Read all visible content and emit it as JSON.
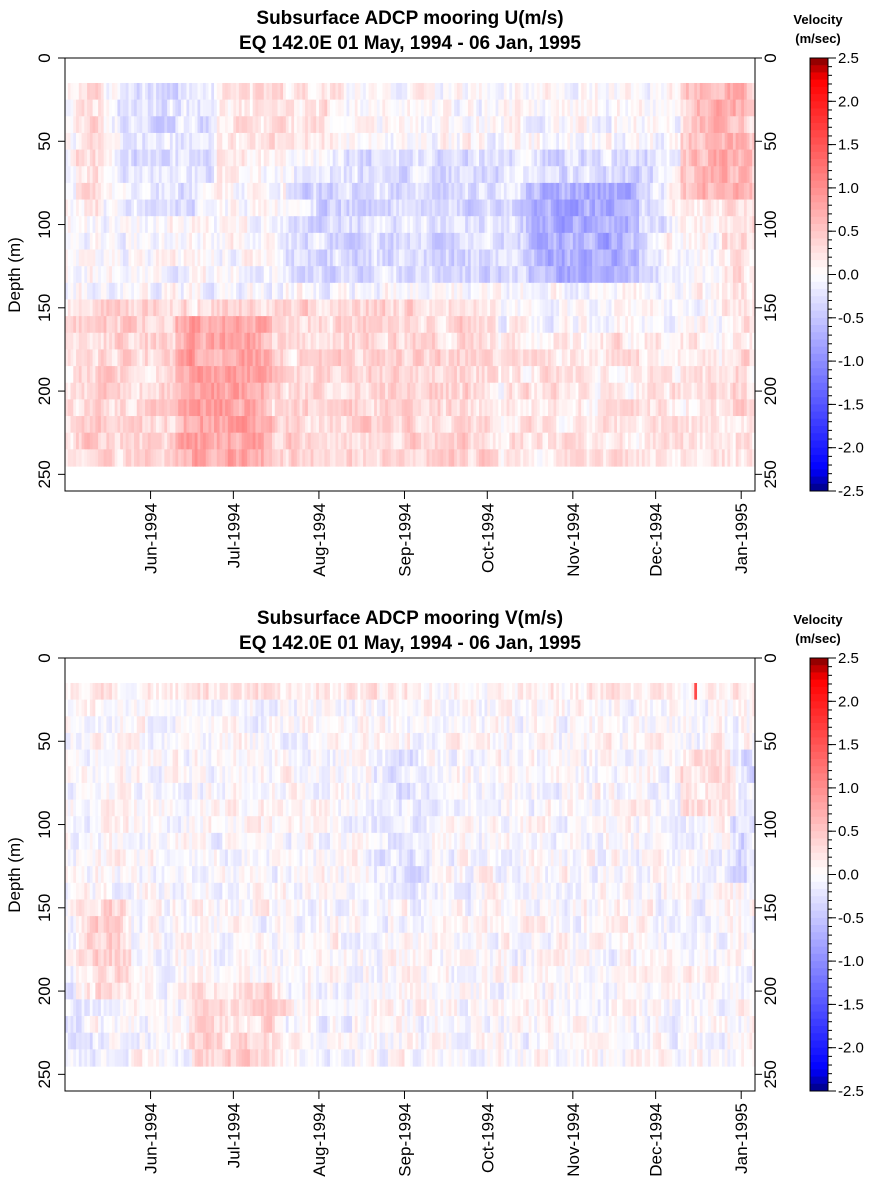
{
  "chart_data": [
    {
      "type": "heatmap",
      "title": "Subsurface ADCP mooring U(m/s)",
      "subtitle": "EQ 142.0E     01 May, 1994 - 06 Jan, 1995",
      "ylabel": "Depth (m)",
      "xlabel": "",
      "x_range": [
        "1994-05-01",
        "1995-01-06"
      ],
      "ylim": [
        260,
        0
      ],
      "y_ticks": [
        0,
        50,
        100,
        150,
        200,
        250
      ],
      "x_ticks": [
        {
          "date": "1994-06-01",
          "label": "Jun-1994"
        },
        {
          "date": "1994-07-01",
          "label": "Jul-1994"
        },
        {
          "date": "1994-08-01",
          "label": "Aug-1994"
        },
        {
          "date": "1994-09-01",
          "label": "Sep-1994"
        },
        {
          "date": "1994-10-01",
          "label": "Oct-1994"
        },
        {
          "date": "1994-11-01",
          "label": "Nov-1994"
        },
        {
          "date": "1994-12-01",
          "label": "Dec-1994"
        },
        {
          "date": "1995-01-01",
          "label": "Jan-1995"
        }
      ],
      "depth_levels": [
        20,
        30,
        40,
        50,
        60,
        70,
        80,
        90,
        100,
        110,
        120,
        130,
        140,
        150,
        160,
        170,
        180,
        190,
        200,
        210,
        220,
        230,
        240
      ],
      "features": [
        {
          "date_start": "1994-05-05",
          "date_end": "1994-05-15",
          "depth_top": 20,
          "depth_bottom": 90,
          "value": 0.35
        },
        {
          "date_start": "1994-05-20",
          "date_end": "1994-06-25",
          "depth_top": 20,
          "depth_bottom": 90,
          "value": -0.25
        },
        {
          "date_start": "1994-06-25",
          "date_end": "1994-08-10",
          "depth_top": 20,
          "depth_bottom": 60,
          "value": 0.2
        },
        {
          "date_start": "1994-07-20",
          "date_end": "1994-12-05",
          "depth_top": 60,
          "depth_bottom": 130,
          "value": -0.3
        },
        {
          "date_start": "1994-10-15",
          "date_end": "1994-11-25",
          "depth_top": 80,
          "depth_bottom": 130,
          "value": -0.4
        },
        {
          "date_start": "1994-12-10",
          "date_end": "1995-01-06",
          "depth_top": 20,
          "depth_bottom": 80,
          "value": 0.65
        },
        {
          "date_start": "1994-12-25",
          "date_end": "1995-01-06",
          "depth_top": 80,
          "depth_bottom": 240,
          "value": 0.35
        },
        {
          "date_start": "1994-05-01",
          "date_end": "1994-10-05",
          "depth_top": 150,
          "depth_bottom": 245,
          "value": 0.35
        },
        {
          "date_start": "1994-06-10",
          "date_end": "1994-07-15",
          "depth_top": 160,
          "depth_bottom": 245,
          "value": 0.45
        },
        {
          "date_start": "1994-10-05",
          "date_end": "1994-12-25",
          "depth_top": 170,
          "depth_bottom": 245,
          "value": 0.2
        }
      ],
      "colorbar": {
        "label": "Velocity\n(m/sec)",
        "min": -2.5,
        "max": 2.5,
        "ticks": [
          2.5,
          2.0,
          1.5,
          1.0,
          0.5,
          0.0,
          -0.5,
          -1.0,
          -1.5,
          -2.0,
          -2.5
        ],
        "tick_labels": [
          "2.5",
          "2.0",
          "1.5",
          "1.0",
          "0.5",
          "0.0",
          "-0.5",
          "-1.0",
          "-1.5",
          "-2.0",
          "-2.5"
        ],
        "colors": {
          "negative_end": "#000080",
          "negative": "#0000ff",
          "zero": "#ffffff",
          "positive": "#ff0000",
          "positive_end": "#800000"
        }
      },
      "grid": false,
      "legend": "right"
    },
    {
      "type": "heatmap",
      "title": "Subsurface ADCP mooring V(m/s)",
      "subtitle": "EQ 142.0E     01 May, 1994 - 06 Jan, 1995",
      "ylabel": "Depth (m)",
      "xlabel": "",
      "x_range": [
        "1994-05-01",
        "1995-01-06"
      ],
      "ylim": [
        260,
        0
      ],
      "y_ticks": [
        0,
        50,
        100,
        150,
        200,
        250
      ],
      "x_ticks": [
        {
          "date": "1994-06-01",
          "label": "Jun-1994"
        },
        {
          "date": "1994-07-01",
          "label": "Jul-1994"
        },
        {
          "date": "1994-08-01",
          "label": "Aug-1994"
        },
        {
          "date": "1994-09-01",
          "label": "Sep-1994"
        },
        {
          "date": "1994-10-01",
          "label": "Oct-1994"
        },
        {
          "date": "1994-11-01",
          "label": "Nov-1994"
        },
        {
          "date": "1994-12-01",
          "label": "Dec-1994"
        },
        {
          "date": "1995-01-01",
          "label": "Jan-1995"
        }
      ],
      "depth_levels": [
        20,
        30,
        40,
        50,
        60,
        70,
        80,
        90,
        100,
        110,
        120,
        130,
        140,
        150,
        160,
        170,
        180,
        190,
        200,
        210,
        220,
        230,
        240
      ],
      "features": [
        {
          "date_start": "1994-05-01",
          "date_end": "1995-01-06",
          "depth_top": 20,
          "depth_bottom": 25,
          "value": 0.15
        },
        {
          "date_start": "1994-05-05",
          "date_end": "1994-05-25",
          "depth_top": 150,
          "depth_bottom": 200,
          "value": 0.35
        },
        {
          "date_start": "1994-05-01",
          "date_end": "1994-05-12",
          "depth_top": 190,
          "depth_bottom": 245,
          "value": -0.25
        },
        {
          "date_start": "1994-06-15",
          "date_end": "1994-07-20",
          "depth_top": 200,
          "depth_bottom": 245,
          "value": 0.3
        },
        {
          "date_start": "1994-08-20",
          "date_end": "1994-09-10",
          "depth_top": 60,
          "depth_bottom": 140,
          "value": -0.2
        },
        {
          "date_start": "1994-12-10",
          "date_end": "1994-12-30",
          "depth_top": 60,
          "depth_bottom": 90,
          "value": 0.3
        },
        {
          "date_start": "1994-12-28",
          "date_end": "1995-01-06",
          "depth_top": 60,
          "depth_bottom": 130,
          "value": -0.35
        },
        {
          "date_start": "1994-12-15",
          "date_end": "1994-12-16",
          "depth_top": 20,
          "depth_bottom": 25,
          "value": 2.5
        }
      ],
      "colorbar": {
        "label": "Velocity\n(m/sec)",
        "min": -2.5,
        "max": 2.5,
        "ticks": [
          2.5,
          2.0,
          1.5,
          1.0,
          0.5,
          0.0,
          -0.5,
          -1.0,
          -1.5,
          -2.0,
          -2.5
        ],
        "tick_labels": [
          "2.5",
          "2.0",
          "1.5",
          "1.0",
          "0.5",
          "0.0",
          "-0.5",
          "-1.0",
          "-1.5",
          "-2.0",
          "-2.5"
        ],
        "colors": {
          "negative_end": "#000080",
          "negative": "#0000ff",
          "zero": "#ffffff",
          "positive": "#ff0000",
          "positive_end": "#800000"
        }
      },
      "grid": false,
      "legend": "right"
    }
  ]
}
